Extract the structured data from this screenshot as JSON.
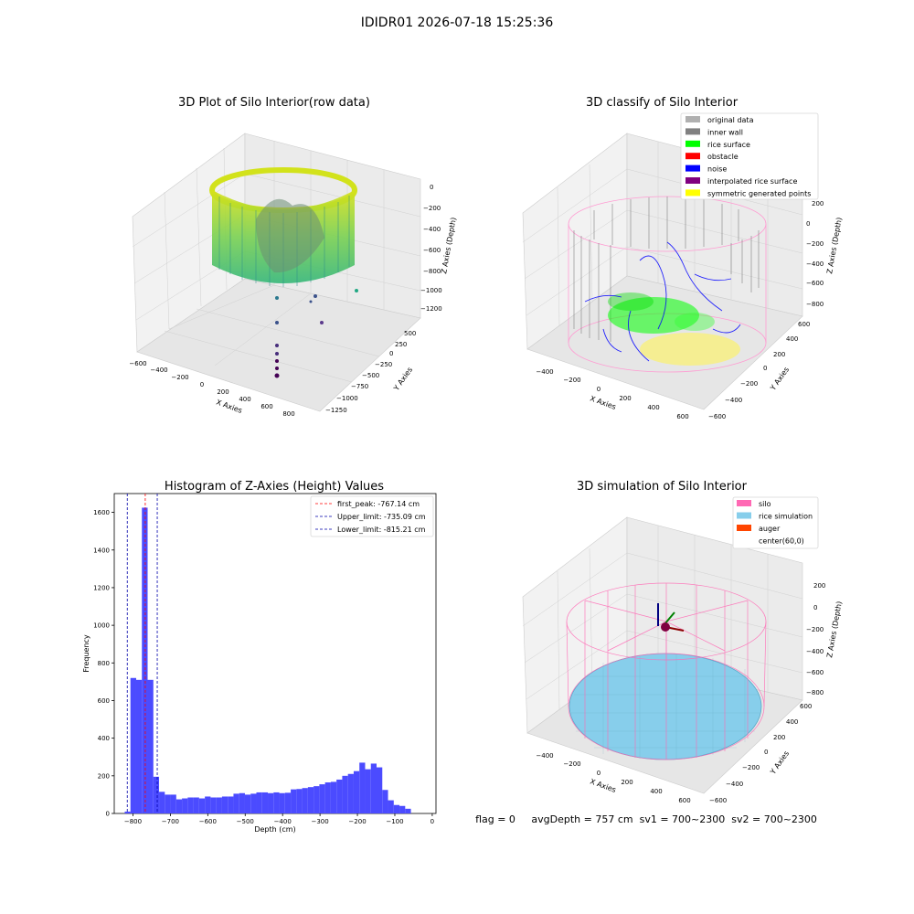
{
  "figure": {
    "suptitle": "IDIDR01 2026-07-18 15:25:36",
    "status_line": "flag = 0     avgDepth = 757 cm  sv1 = 700~2300  sv2 = 700~2300"
  },
  "panels": {
    "raw": {
      "title": "3D Plot of Silo Interior(row data)",
      "xlabel": "X Axies",
      "ylabel": "Y Axies",
      "zlabel": "Z Axies (Depth)",
      "xticks": [
        "−600",
        "−400",
        "−200",
        "0",
        "200",
        "400",
        "600",
        "800"
      ],
      "yticks": [
        "500",
        "250",
        "0",
        "−250",
        "−500",
        "−750",
        "−1000",
        "−1250"
      ],
      "zticks": [
        "0",
        "−200",
        "−400",
        "−600",
        "−800",
        "−1000",
        "−1200"
      ]
    },
    "classify": {
      "title": "3D classify of Silo Interior",
      "xlabel": "X Axies",
      "ylabel": "Y Axies",
      "zlabel": "Z Axies (Depth)",
      "xticks": [
        "−400",
        "−200",
        "0",
        "200",
        "400",
        "600"
      ],
      "yticks": [
        "600",
        "400",
        "200",
        "0",
        "−200",
        "−400",
        "−600"
      ],
      "zticks": [
        "200",
        "0",
        "−200",
        "−400",
        "−600",
        "−800"
      ],
      "legend": [
        {
          "label": "original data",
          "color": "#b0b0b0"
        },
        {
          "label": "inner wall",
          "color": "#808080"
        },
        {
          "label": "rice surface",
          "color": "#00ff00"
        },
        {
          "label": "obstacle",
          "color": "#ff0000"
        },
        {
          "label": "noise",
          "color": "#0000ff"
        },
        {
          "label": "interpolated rice surface",
          "color": "#800080"
        },
        {
          "label": "symmetric generated points",
          "color": "#ffff00"
        }
      ]
    },
    "histogram": {
      "title": "Histogram of Z-Axies (Height) Values",
      "xlabel": "Depth (cm)",
      "ylabel": "Frequency",
      "legend": [
        {
          "label": "first_peak: -767.14 cm",
          "color": "#ff0000"
        },
        {
          "label": "Upper_limit: -735.09 cm",
          "color": "#0000aa"
        },
        {
          "label": "Lower_limit: -815.21 cm",
          "color": "#0000aa"
        }
      ]
    },
    "simulation": {
      "title": "3D simulation of Silo Interior",
      "xlabel": "X Axies",
      "ylabel": "Y Axies",
      "zlabel": "Z Axies (Depth)",
      "xticks": [
        "−400",
        "−200",
        "0",
        "200",
        "400",
        "600"
      ],
      "yticks": [
        "600",
        "400",
        "200",
        "0",
        "−200",
        "−400",
        "−600"
      ],
      "zticks": [
        "200",
        "0",
        "−200",
        "−400",
        "−600",
        "−800"
      ],
      "legend": [
        {
          "label": "silo",
          "color": "#ff69b4"
        },
        {
          "label": "rice simulation",
          "color": "#87ceeb"
        },
        {
          "label": "auger",
          "color": "#ff4500"
        },
        {
          "label": "center(60,0)",
          "color": "#ffffff"
        }
      ]
    }
  },
  "chart_data": [
    {
      "type": "scatter",
      "title": "3D Plot of Silo Interior(row data)",
      "xlabel": "X Axies",
      "ylabel": "Y Axies",
      "zlabel": "Z Axies (Depth)",
      "xlim": [
        -600,
        900
      ],
      "ylim": [
        -1300,
        600
      ],
      "zlim": [
        -1300,
        50
      ]
    },
    {
      "type": "scatter",
      "title": "3D classify of Silo Interior",
      "xlabel": "X Axies",
      "ylabel": "Y Axies",
      "zlabel": "Z Axies (Depth)",
      "xlim": [
        -500,
        700
      ],
      "ylim": [
        -600,
        600
      ],
      "zlim": [
        -900,
        200
      ]
    },
    {
      "type": "bar",
      "title": "Histogram of Z-Axies (Height) Values",
      "xlabel": "Depth (cm)",
      "ylabel": "Frequency",
      "xlim": [
        -850,
        10
      ],
      "ylim": [
        0,
        1700
      ],
      "bin_width": 15.3,
      "bin_start": -822,
      "values": [
        10,
        720,
        710,
        1625,
        710,
        195,
        115,
        100,
        100,
        75,
        80,
        85,
        85,
        80,
        90,
        85,
        85,
        90,
        90,
        105,
        108,
        100,
        105,
        112,
        112,
        108,
        112,
        108,
        110,
        128,
        130,
        135,
        140,
        145,
        155,
        165,
        168,
        180,
        200,
        210,
        225,
        270,
        235,
        265,
        245,
        125,
        70,
        45,
        40,
        25
      ],
      "vlines": [
        {
          "label": "first_peak: -767.14 cm",
          "x": -767.14,
          "color": "#ff0000"
        },
        {
          "label": "Upper_limit: -735.09 cm",
          "x": -735.09,
          "color": "#0000aa"
        },
        {
          "label": "Lower_limit: -815.21 cm",
          "x": -815.21,
          "color": "#0000aa"
        }
      ],
      "xticks": [
        -800,
        -700,
        -600,
        -500,
        -400,
        -300,
        -200,
        -100,
        0
      ],
      "xtick_labels": [
        "−800",
        "−700",
        "−600",
        "−500",
        "−400",
        "−300",
        "−200",
        "−100",
        "0"
      ],
      "yticks": [
        0,
        200,
        400,
        600,
        800,
        1000,
        1200,
        1400,
        1600
      ],
      "bar_color": "#4b4bff"
    },
    {
      "type": "scatter",
      "title": "3D simulation of Silo Interior",
      "xlabel": "X Axies",
      "ylabel": "Y Axies",
      "zlabel": "Z Axies (Depth)",
      "xlim": [
        -500,
        700
      ],
      "ylim": [
        -600,
        600
      ],
      "zlim": [
        -900,
        350
      ]
    }
  ]
}
